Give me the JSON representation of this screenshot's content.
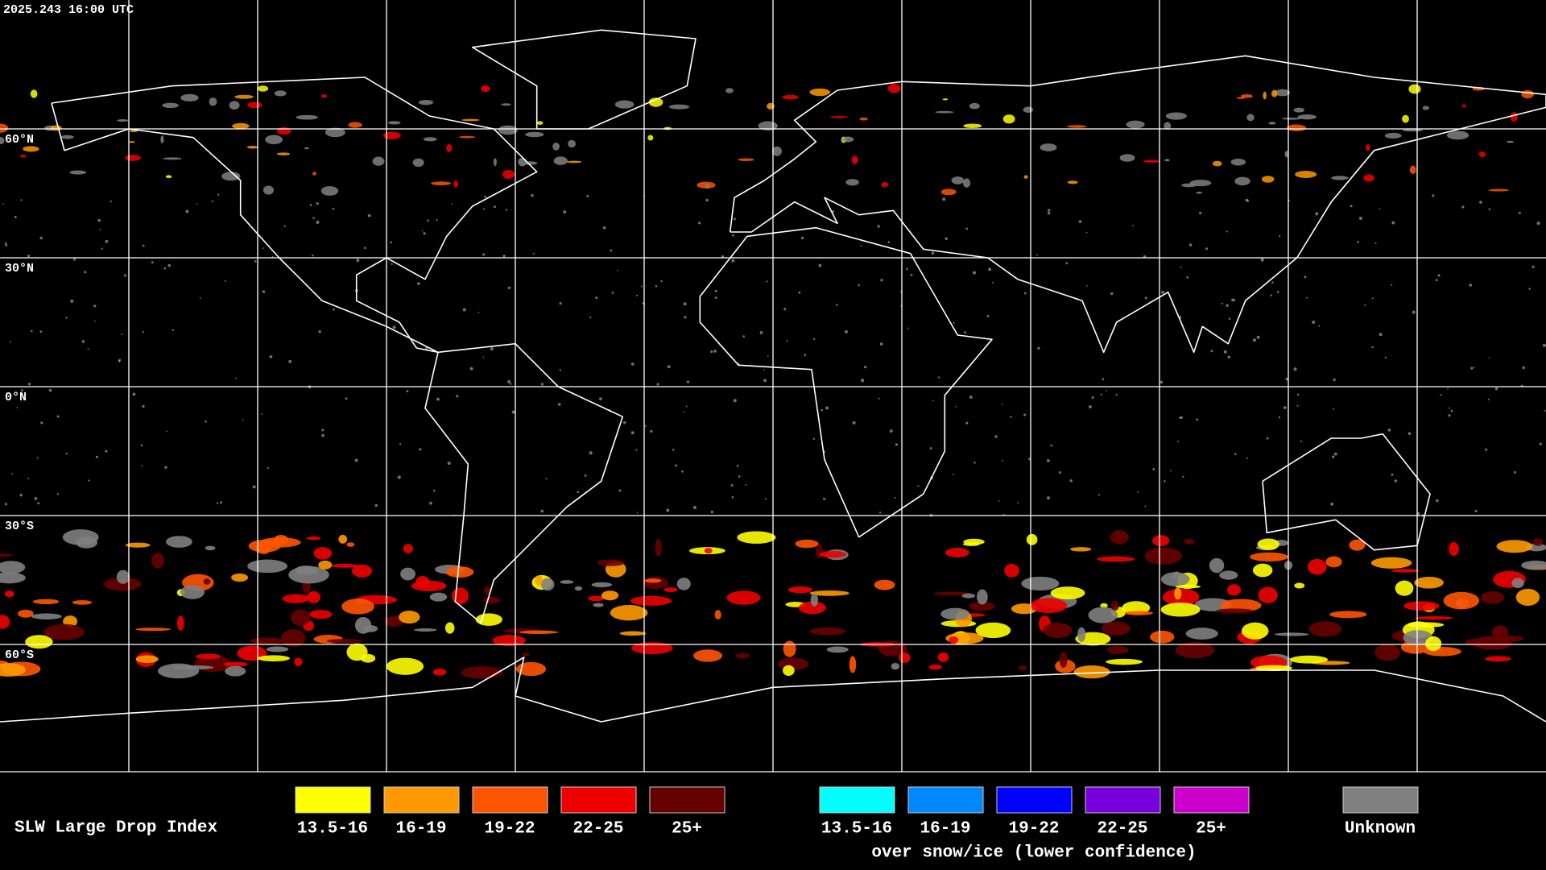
{
  "header": {
    "timestamp": "2025.243 16:00 UTC"
  },
  "map": {
    "latitude_labels": [
      "60°N",
      "30°N",
      "0°N",
      "30°S",
      "60°S"
    ]
  },
  "legend": {
    "title": "SLW Large Drop Index",
    "groups": [
      {
        "items": [
          {
            "label": "13.5-16",
            "color": "#ffff00"
          },
          {
            "label": "16-19",
            "color": "#ff9900"
          },
          {
            "label": "19-22",
            "color": "#ff5500"
          },
          {
            "label": "22-25",
            "color": "#ee0000"
          },
          {
            "label": "25+",
            "color": "#660000"
          }
        ]
      },
      {
        "items": [
          {
            "label": "13.5-16",
            "color": "#00ffff"
          },
          {
            "label": "16-19",
            "color": "#0088ff"
          },
          {
            "label": "19-22",
            "color": "#0000ff"
          },
          {
            "label": "22-25",
            "color": "#7700dd"
          },
          {
            "label": "25+",
            "color": "#cc00cc"
          }
        ],
        "caption": "over snow/ice (lower confidence)"
      },
      {
        "items": [
          {
            "label": "Unknown",
            "color": "#808080"
          }
        ]
      }
    ]
  }
}
